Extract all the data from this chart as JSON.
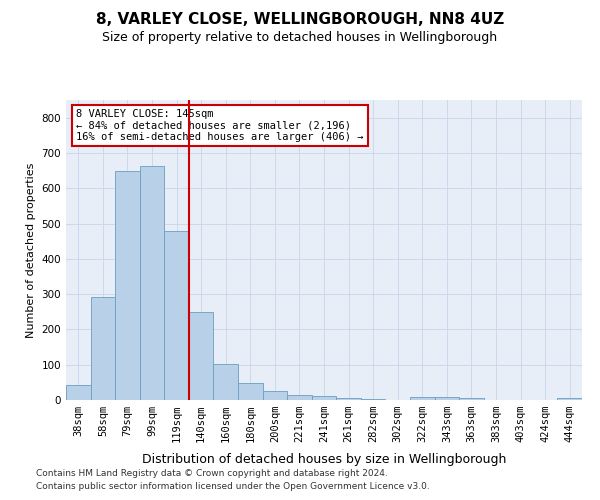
{
  "title": "8, VARLEY CLOSE, WELLINGBOROUGH, NN8 4UZ",
  "subtitle": "Size of property relative to detached houses in Wellingborough",
  "xlabel": "Distribution of detached houses by size in Wellingborough",
  "ylabel": "Number of detached properties",
  "categories": [
    "38sqm",
    "58sqm",
    "79sqm",
    "99sqm",
    "119sqm",
    "140sqm",
    "160sqm",
    "180sqm",
    "200sqm",
    "221sqm",
    "241sqm",
    "261sqm",
    "282sqm",
    "302sqm",
    "322sqm",
    "343sqm",
    "363sqm",
    "383sqm",
    "403sqm",
    "424sqm",
    "444sqm"
  ],
  "values": [
    43,
    292,
    650,
    662,
    478,
    250,
    103,
    49,
    25,
    14,
    12,
    7,
    2,
    0,
    8,
    8,
    5,
    0,
    0,
    0,
    5
  ],
  "bar_color": "#b8d0e8",
  "bar_edge_color": "#6a9fc0",
  "annotation_title": "8 VARLEY CLOSE: 145sqm",
  "annotation_line1": "← 84% of detached houses are smaller (2,196)",
  "annotation_line2": "16% of semi-detached houses are larger (406) →",
  "annotation_box_color": "#ffffff",
  "annotation_box_edge": "#cc0000",
  "vline_color": "#cc0000",
  "ylim": [
    0,
    850
  ],
  "yticks": [
    0,
    100,
    200,
    300,
    400,
    500,
    600,
    700,
    800
  ],
  "footer1": "Contains HM Land Registry data © Crown copyright and database right 2024.",
  "footer2": "Contains public sector information licensed under the Open Government Licence v3.0.",
  "background_color": "#ffffff",
  "plot_bg_color": "#e8eef8",
  "title_fontsize": 11,
  "subtitle_fontsize": 9,
  "xlabel_fontsize": 9,
  "ylabel_fontsize": 8,
  "tick_fontsize": 7.5,
  "footer_fontsize": 6.5,
  "vline_x": 4.5
}
